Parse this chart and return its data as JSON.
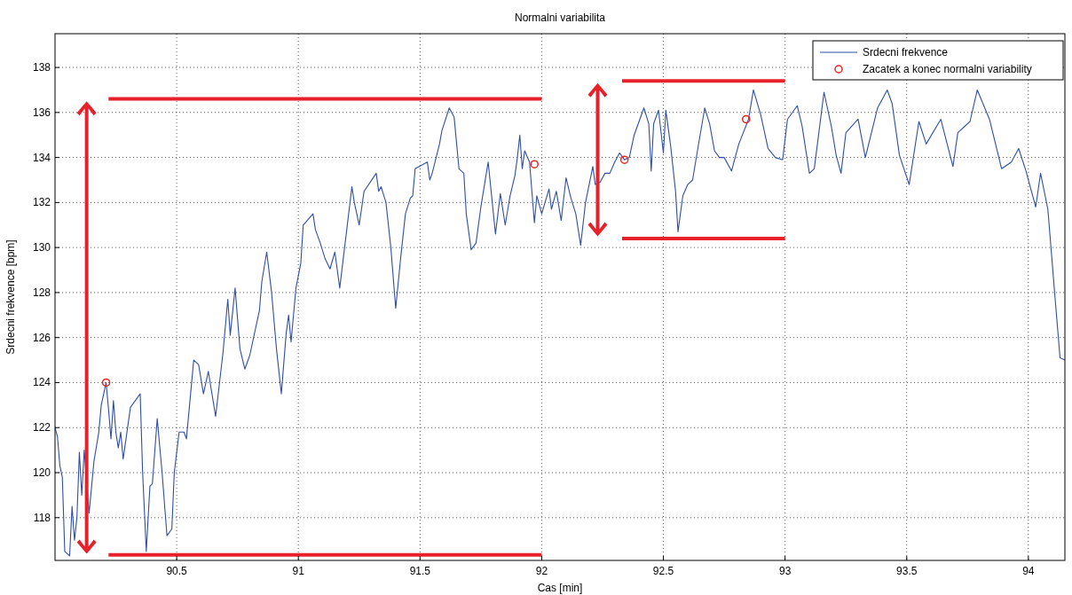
{
  "chart_data": {
    "type": "line",
    "title": "Normalni variabilita",
    "xlabel": "Cas [min]",
    "ylabel": "Srdecni frekvence [bpm]",
    "xlim": [
      90,
      94.15
    ],
    "ylim": [
      116.1,
      139.5
    ],
    "xticks": [
      90.5,
      91,
      91.5,
      92,
      92.5,
      93,
      93.5,
      94
    ],
    "yticks": [
      118,
      120,
      122,
      124,
      126,
      128,
      130,
      132,
      134,
      136,
      138
    ],
    "grid": true,
    "legend": "top right",
    "series": [
      {
        "name": "Srdecni frekvence",
        "color": "#2f4fa6",
        "marker": "none",
        "line_style": "solid",
        "x": [
          90,
          90.01,
          90.02,
          90.03,
          90.04,
          90.06,
          90.07,
          90.08,
          90.09,
          90.1,
          90.11,
          90.12,
          90.14,
          90.16,
          90.18,
          90.19,
          90.21,
          90.22,
          90.23,
          90.24,
          90.25,
          90.26,
          90.27,
          90.28,
          90.31,
          90.35,
          90.36,
          90.375,
          90.39,
          90.4,
          90.42,
          90.44,
          90.46,
          90.48,
          90.49,
          90.51,
          90.53,
          90.54,
          90.57,
          90.59,
          90.61,
          90.63,
          90.66,
          90.69,
          90.71,
          90.72,
          90.74,
          90.76,
          90.78,
          90.8,
          90.84,
          90.85,
          90.87,
          90.89,
          90.91,
          90.93,
          90.95,
          90.96,
          90.97,
          90.99,
          91.01,
          91.02,
          91.06,
          91.07,
          91.09,
          91.11,
          91.13,
          91.15,
          91.17,
          91.19,
          91.22,
          91.23,
          91.25,
          91.27,
          91.32,
          91.33,
          91.34,
          91.36,
          91.38,
          91.4,
          91.42,
          91.44,
          91.46,
          91.47,
          91.48,
          91.53,
          91.54,
          91.55,
          91.58,
          91.59,
          91.62,
          91.64,
          91.66,
          91.68,
          91.69,
          91.71,
          91.73,
          91.75,
          91.78,
          91.81,
          91.83,
          91.85,
          91.87,
          91.89,
          91.9,
          91.91,
          91.92,
          91.93,
          91.95,
          91.97,
          91.98,
          92,
          92.03,
          92.04,
          92.06,
          92.08,
          92.1,
          92.12,
          92.14,
          92.16,
          92.18,
          92.21,
          92.22,
          92.24,
          92.26,
          92.28,
          92.3,
          92.32,
          92.34,
          92.36,
          92.38,
          92.42,
          92.44,
          92.45,
          92.46,
          92.48,
          92.5,
          92.51,
          92.53,
          92.55,
          92.56,
          92.58,
          92.6,
          92.62,
          92.64,
          92.67,
          92.69,
          92.71,
          92.73,
          92.75,
          92.78,
          92.81,
          92.85,
          92.87,
          92.9,
          92.93,
          92.96,
          92.99,
          93.01,
          93.05,
          93.07,
          93.1,
          93.12,
          93.16,
          93.19,
          93.21,
          93.23,
          93.25,
          93.3,
          93.33,
          93.38,
          93.42,
          93.44,
          93.47,
          93.51,
          93.55,
          93.58,
          93.64,
          93.69,
          93.71,
          93.76,
          93.79,
          93.84,
          93.89,
          93.93,
          93.96,
          93.99,
          94.03,
          94.05,
          94.08,
          94.11,
          94.13,
          94.15
        ],
        "values": [
          122,
          121.6,
          120.3,
          119.8,
          116.5,
          116.3,
          118.5,
          117,
          118,
          120.9,
          119,
          121,
          118.2,
          120.5,
          121.8,
          123,
          124,
          122.8,
          121.5,
          123.2,
          121.8,
          121.1,
          121.8,
          120.6,
          122.9,
          123.5,
          120,
          116.5,
          119.4,
          119.5,
          122.4,
          120,
          117.2,
          117.5,
          120,
          121.8,
          121.8,
          121.5,
          125,
          124.8,
          123.5,
          124.5,
          122.5,
          125.3,
          127.7,
          126.1,
          128.2,
          125.5,
          124.6,
          125.2,
          127.2,
          128.5,
          129.8,
          128,
          125.5,
          123.5,
          126.2,
          127,
          125.8,
          128.2,
          129.3,
          131,
          131.5,
          130.8,
          130.2,
          129.5,
          129.05,
          129.8,
          128.2,
          130,
          132.7,
          132,
          131,
          132.5,
          133.3,
          132.5,
          132.7,
          132,
          130,
          127.3,
          129.5,
          131.5,
          132.2,
          132.3,
          133.5,
          133.8,
          133,
          133.3,
          134.6,
          135.2,
          136.2,
          135.8,
          133.5,
          133.3,
          131.5,
          129.9,
          130.2,
          131.8,
          133.8,
          130.6,
          132.4,
          131,
          132.3,
          133.2,
          134,
          135,
          133.5,
          134.3,
          133.8,
          131.1,
          132.3,
          131.5,
          132.6,
          131.7,
          132.5,
          131.2,
          133.1,
          132.2,
          131.5,
          130.1,
          132,
          133.6,
          132.8,
          132.9,
          133.3,
          133.3,
          133.8,
          134.2,
          133.9,
          134,
          135,
          136.2,
          135.5,
          133.4,
          135.5,
          136.1,
          134.2,
          136.1,
          134.5,
          132.5,
          130.7,
          132.3,
          132.8,
          133,
          134.3,
          136.2,
          135.5,
          134.3,
          134,
          134,
          133.4,
          134.6,
          135.7,
          137,
          135.9,
          134.4,
          134,
          133.9,
          135.7,
          136.3,
          135.4,
          133.3,
          133.5,
          136.9,
          135.4,
          134.1,
          133.3,
          135.1,
          135.7,
          134,
          136.2,
          137,
          136.4,
          134.1,
          132.8,
          135.6,
          134.6,
          135.7,
          133.6,
          135.1,
          135.6,
          137,
          135.7,
          133.5,
          133.8,
          134.4,
          133.4,
          131.8,
          133.3,
          131.7,
          127.7,
          125.1,
          125
        ]
      },
      {
        "name": "Zacatek a konec normalni variability",
        "type": "scatter",
        "color": "#ee2222",
        "marker": "circle",
        "x": [
          90.21,
          91.97,
          92.34,
          92.84
        ],
        "values": [
          124,
          133.7,
          133.9,
          135.7
        ]
      },
      {
        "type": "line",
        "color": "#e8202a",
        "x": [
          90.22,
          92.0
        ],
        "values": [
          136.6,
          136.6
        ]
      },
      {
        "type": "line",
        "color": "#e8202a",
        "x": [
          90.22,
          92.0
        ],
        "values": [
          116.35,
          116.35
        ]
      },
      {
        "type": "line",
        "color": "#e8202a",
        "x": [
          92.33,
          93.0
        ],
        "values": [
          137.4,
          137.4
        ]
      },
      {
        "type": "line",
        "color": "#e8202a",
        "x": [
          92.33,
          93.0
        ],
        "values": [
          130.4,
          130.4
        ]
      }
    ]
  }
}
